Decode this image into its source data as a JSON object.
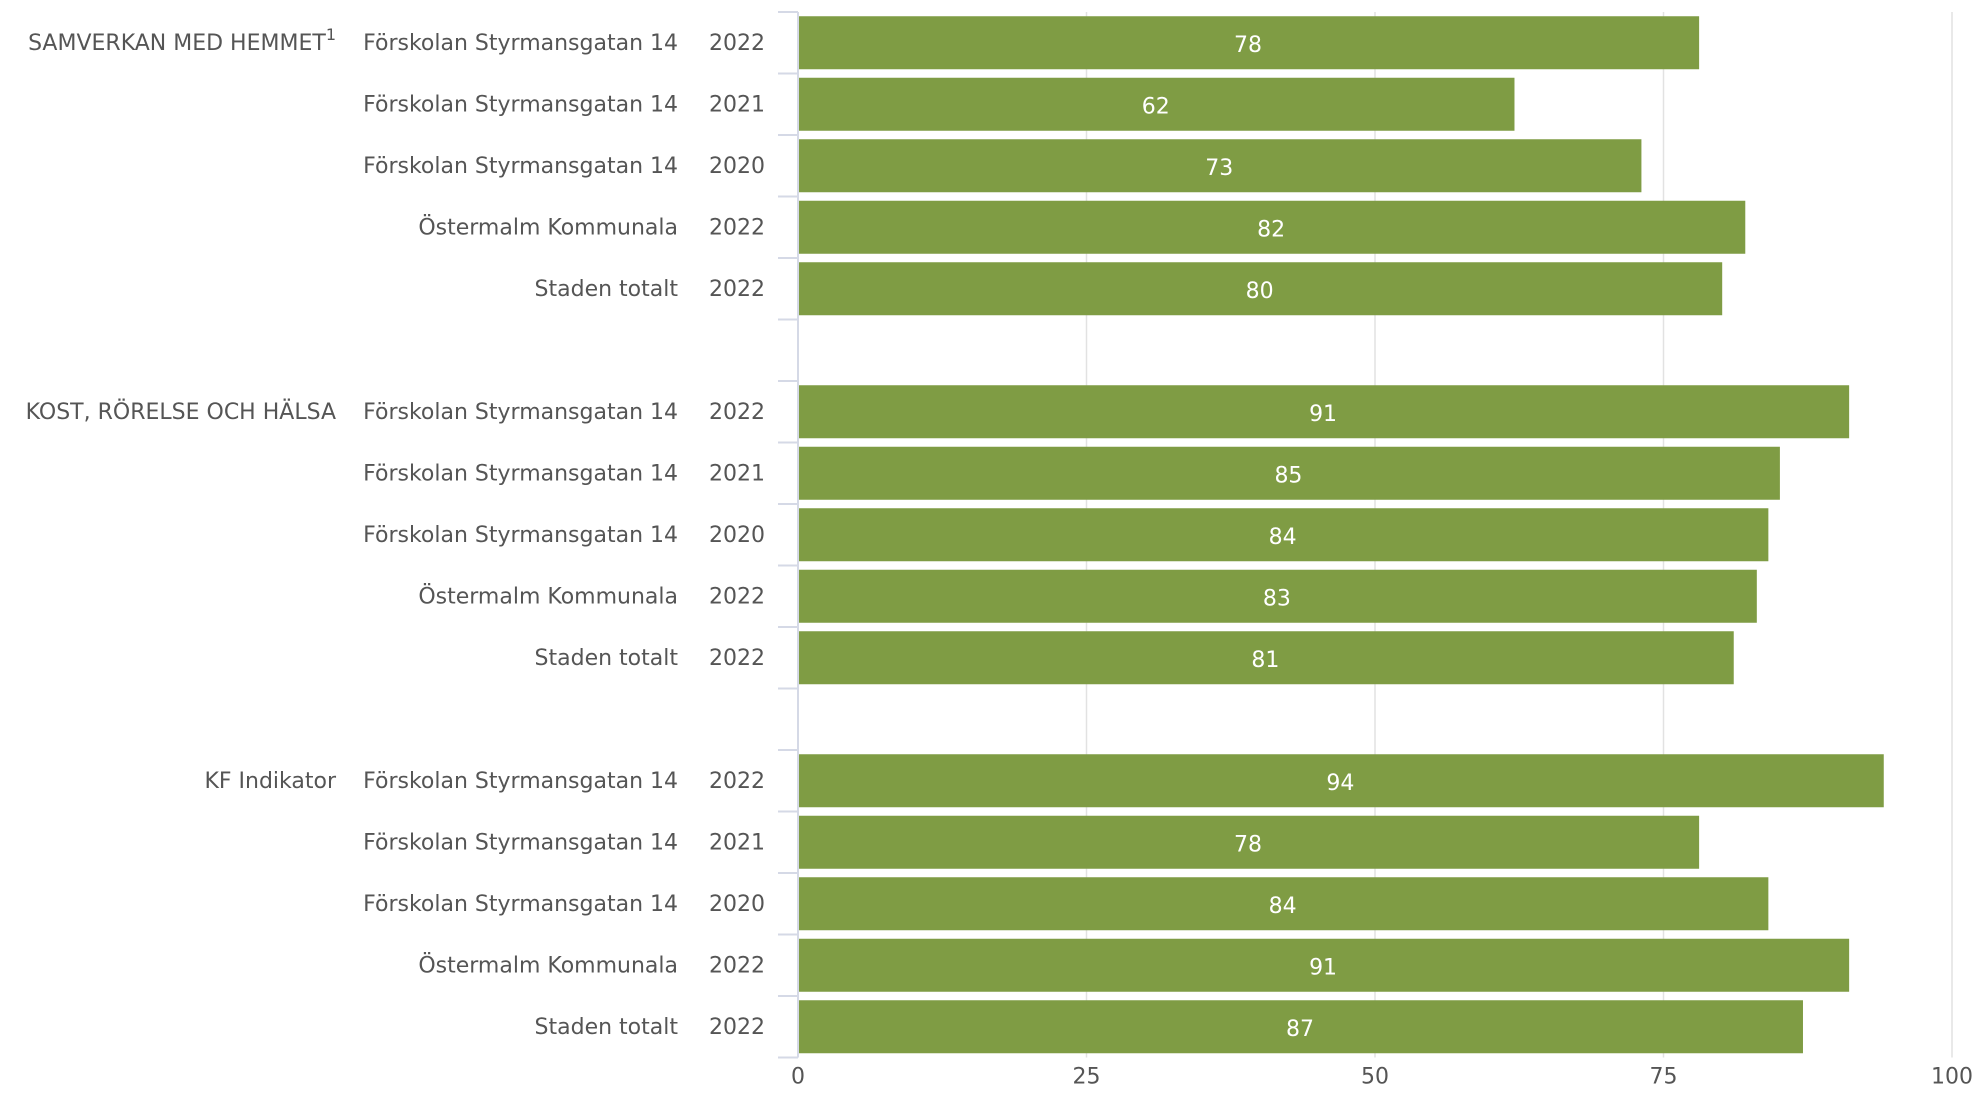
{
  "chart_data": {
    "type": "bar",
    "orientation": "horizontal",
    "groups": [
      {
        "label": "SAMVERKAN MED HEMMET",
        "superscript": "1",
        "rows": [
          {
            "unit": "Förskolan Styrmansgatan 14",
            "year": "2022",
            "value": 78
          },
          {
            "unit": "Förskolan Styrmansgatan 14",
            "year": "2021",
            "value": 62
          },
          {
            "unit": "Förskolan Styrmansgatan 14",
            "year": "2020",
            "value": 73
          },
          {
            "unit": "Östermalm Kommunala",
            "year": "2022",
            "value": 82
          },
          {
            "unit": "Staden totalt",
            "year": "2022",
            "value": 80
          }
        ]
      },
      {
        "label": "KOST, RÖRELSE OCH HÄLSA",
        "superscript": "",
        "rows": [
          {
            "unit": "Förskolan Styrmansgatan 14",
            "year": "2022",
            "value": 91
          },
          {
            "unit": "Förskolan Styrmansgatan 14",
            "year": "2021",
            "value": 85
          },
          {
            "unit": "Förskolan Styrmansgatan 14",
            "year": "2020",
            "value": 84
          },
          {
            "unit": "Östermalm Kommunala",
            "year": "2022",
            "value": 83
          },
          {
            "unit": "Staden totalt",
            "year": "2022",
            "value": 81
          }
        ]
      },
      {
        "label": "KF Indikator",
        "superscript": "",
        "rows": [
          {
            "unit": "Förskolan Styrmansgatan 14",
            "year": "2022",
            "value": 94
          },
          {
            "unit": "Förskolan Styrmansgatan 14",
            "year": "2021",
            "value": 78
          },
          {
            "unit": "Förskolan Styrmansgatan 14",
            "year": "2020",
            "value": 84
          },
          {
            "unit": "Östermalm Kommunala",
            "year": "2022",
            "value": 91
          },
          {
            "unit": "Staden totalt",
            "year": "2022",
            "value": 87
          }
        ]
      }
    ],
    "xlim": [
      0,
      100
    ],
    "xticks": [
      0,
      25,
      50,
      75,
      100
    ],
    "grid": true,
    "bar_color": "#7f9c44",
    "label_color": "#ffffff"
  }
}
